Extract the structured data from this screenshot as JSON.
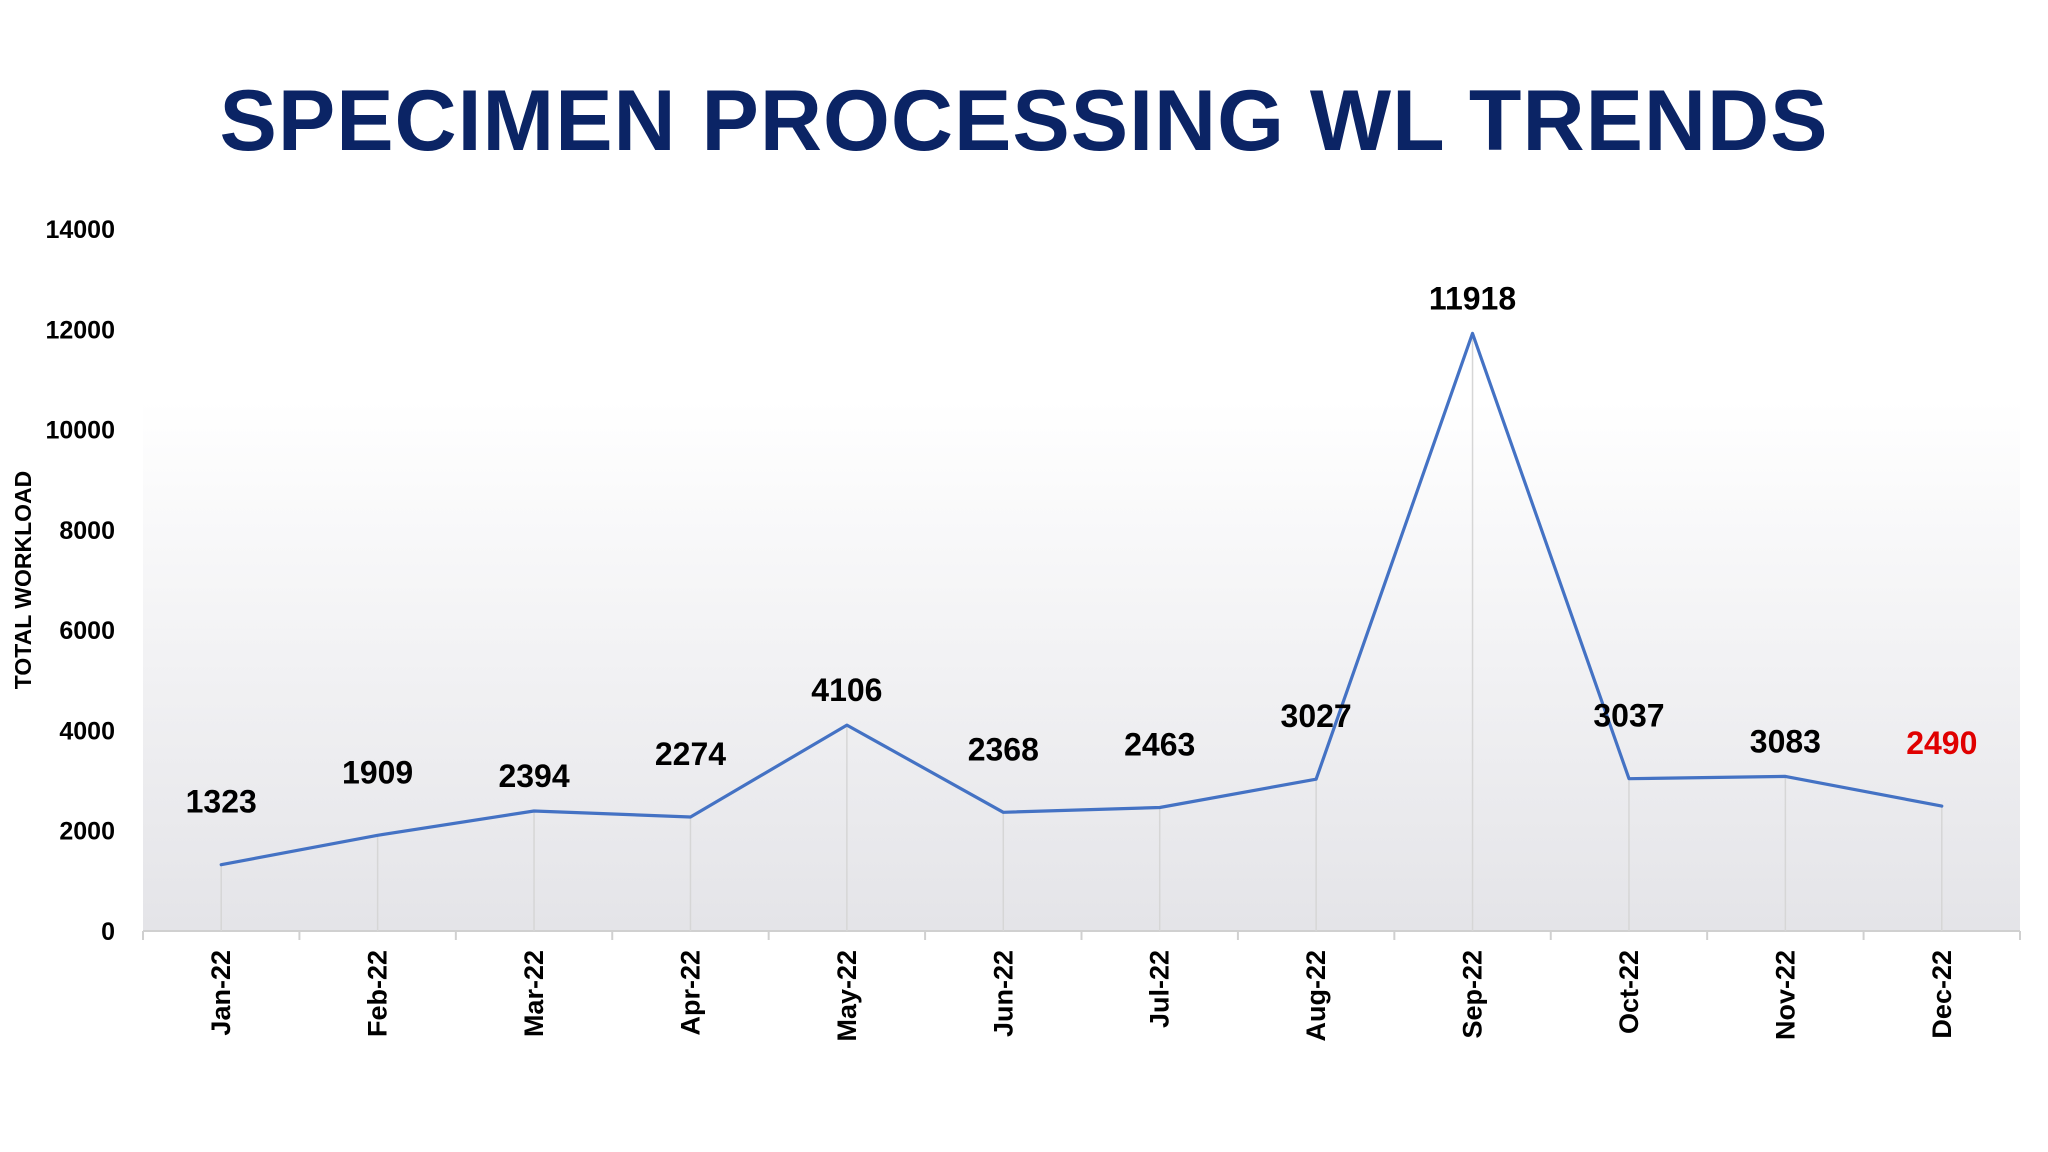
{
  "chart_data": {
    "type": "line",
    "title": "SPECIMEN PROCESSING WL  TRENDS",
    "xlabel": "",
    "ylabel": "TOTAL WORKLOAD",
    "ylim": [
      0,
      14000
    ],
    "yticks": [
      0,
      2000,
      4000,
      6000,
      8000,
      10000,
      12000,
      14000
    ],
    "categories": [
      "Jan-22",
      "Feb-22",
      "Mar-22",
      "Apr-22",
      "May-22",
      "Jun-22",
      "Jul-22",
      "Aug-22",
      "Sep-22",
      "Oct-22",
      "Nov-22",
      "Dec-22"
    ],
    "series": [
      {
        "values": [
          1323,
          1909,
          2394,
          2274,
          4106,
          2368,
          2463,
          3027,
          11918,
          3037,
          3083,
          2490
        ],
        "labels": [
          "1323",
          "1909",
          "2394",
          "2274",
          "4106",
          "2368",
          "2463",
          "3027",
          "11918",
          "3037",
          "3083",
          "2490"
        ],
        "color": "#4472c4"
      }
    ],
    "label_color": "#000000",
    "highlight_label_color": "#e00000",
    "highlight_index": 11,
    "grid": false,
    "legend": "none"
  }
}
